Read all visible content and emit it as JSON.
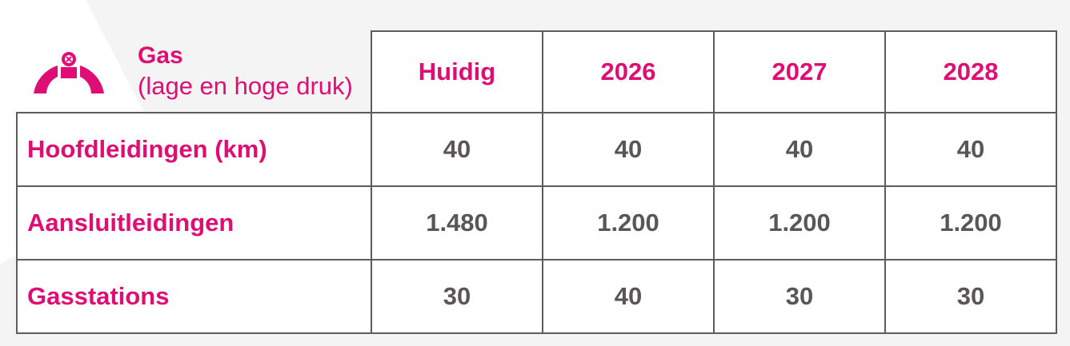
{
  "header": {
    "title": "Gas",
    "subtitle": "(lage en hoge druk)",
    "icon": "gas-pipe-valve-icon"
  },
  "columns": [
    "Huidig",
    "2026",
    "2027",
    "2028"
  ],
  "rows": [
    {
      "label": "Hoofdleidingen (km)",
      "values": [
        "40",
        "40",
        "40",
        "40"
      ]
    },
    {
      "label": "Aansluitleidingen",
      "values": [
        "1.480",
        "1.200",
        "1.200",
        "1.200"
      ]
    },
    {
      "label": "Gasstations",
      "values": [
        "30",
        "40",
        "30",
        "30"
      ]
    }
  ],
  "colors": {
    "accent": "#df0e75",
    "value_text": "#5a5557",
    "border": "#5f5a5e",
    "background_shape": "#f4f4f4"
  }
}
